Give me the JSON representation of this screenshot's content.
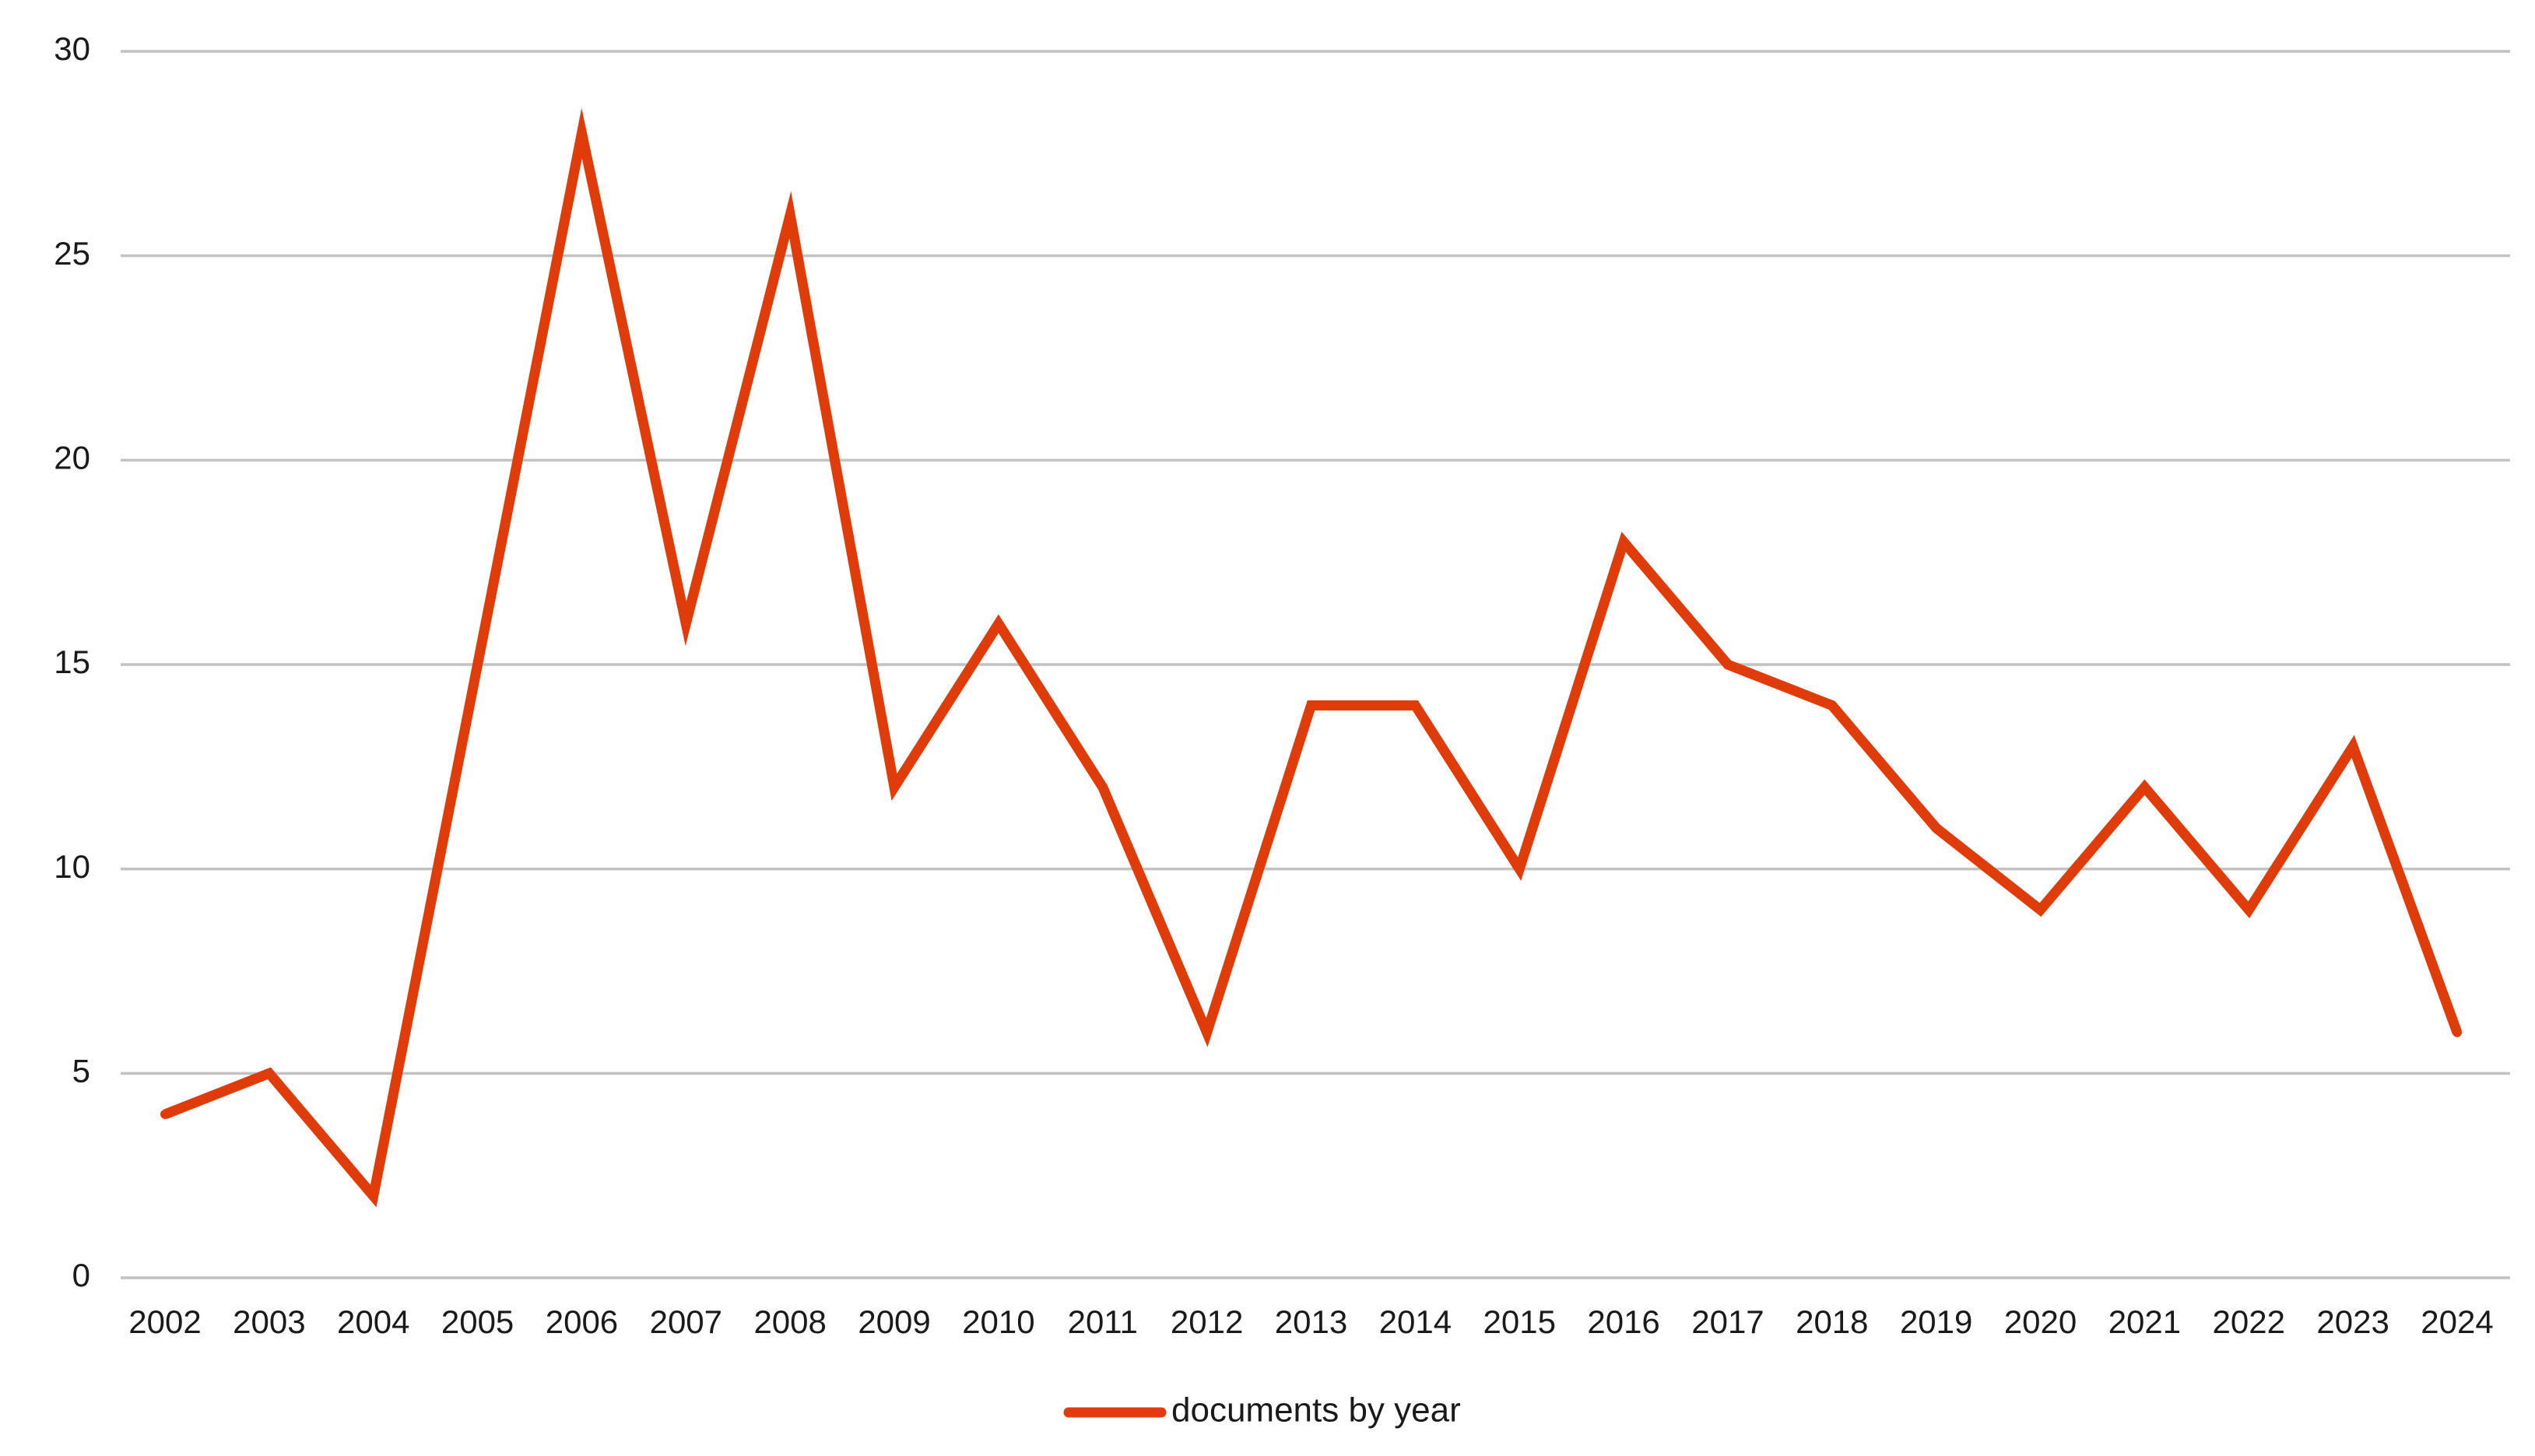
{
  "chart_data": {
    "type": "line",
    "title": "",
    "xlabel": "",
    "ylabel": "",
    "categories": [
      "2002",
      "2003",
      "2004",
      "2005",
      "2006",
      "2007",
      "2008",
      "2009",
      "2010",
      "2011",
      "2012",
      "2013",
      "2014",
      "2015",
      "2016",
      "2017",
      "2018",
      "2019",
      "2020",
      "2021",
      "2022",
      "2023",
      "2024"
    ],
    "series": [
      {
        "name": "documents by year",
        "color": "#e03c0a",
        "values": [
          4,
          5,
          2,
          15,
          28,
          16,
          26,
          12,
          16,
          12,
          6,
          14,
          14,
          10,
          18,
          15,
          14,
          11,
          9,
          12,
          9,
          13,
          6
        ]
      }
    ],
    "ylim": [
      0,
      30
    ],
    "yticks": [
      "0",
      "5",
      "10",
      "15",
      "20",
      "25",
      "30"
    ],
    "grid": true,
    "legend": "bottom-center",
    "colors": {
      "gridline": "#c2c2c2",
      "text": "#1a1a1a"
    }
  }
}
